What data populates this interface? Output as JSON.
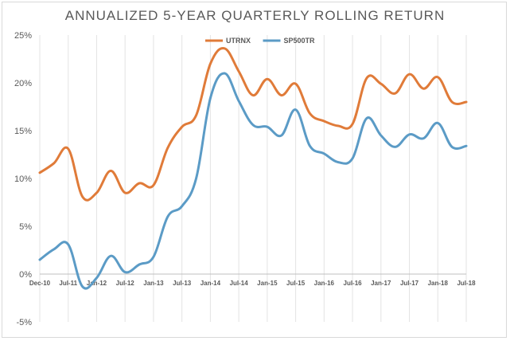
{
  "chart_data": {
    "type": "line",
    "title": "ANNUALIZED 5-YEAR QUARTERLY ROLLING RETURN",
    "xlabel": "",
    "ylabel": "",
    "ylim": [
      -5,
      25
    ],
    "yticks": [
      "25%",
      "20%",
      "15%",
      "10%",
      "5%",
      "0%",
      "-5%"
    ],
    "ytick_values": [
      25,
      20,
      15,
      10,
      5,
      0,
      -5
    ],
    "x": [
      "Dec-10",
      "Mar-11",
      "Jun-11",
      "Sep-11",
      "Dec-11",
      "Mar-12",
      "Jun-12",
      "Sep-12",
      "Dec-12",
      "Mar-13",
      "Jun-13",
      "Sep-13",
      "Dec-13",
      "Mar-14",
      "Jun-14",
      "Sep-14",
      "Dec-14",
      "Mar-15",
      "Jun-15",
      "Sep-15",
      "Dec-15",
      "Mar-16",
      "Jun-16",
      "Sep-16",
      "Dec-16",
      "Mar-17",
      "Jun-17",
      "Sep-17",
      "Dec-17",
      "Mar-18",
      "Jun-18"
    ],
    "xtick_labels": [
      "Dec-10",
      "Jul-11",
      "Jan-12",
      "Jul-12",
      "Jan-13",
      "Jul-13",
      "Jan-14",
      "Jul-14",
      "Jan-15",
      "Jul-15",
      "Jan-16",
      "Jul-16",
      "Jan-17",
      "Jul-17",
      "Jan-18",
      "Jul-18"
    ],
    "legend": "top-center",
    "grid": "vertical",
    "series": [
      {
        "name": "UTRNX",
        "color": "#e07b39",
        "values": [
          10.6,
          11.6,
          13.1,
          8.1,
          8.5,
          10.8,
          8.5,
          9.5,
          9.3,
          13.2,
          15.4,
          16.6,
          22.0,
          23.6,
          21.2,
          18.7,
          20.4,
          18.7,
          19.9,
          16.8,
          16.0,
          15.5,
          15.7,
          20.5,
          19.9,
          18.9,
          20.9,
          19.4,
          20.6,
          18.0,
          18.0
        ]
      },
      {
        "name": "SP500TR",
        "color": "#5b9bc6",
        "values": [
          1.5,
          2.6,
          3.1,
          -1.3,
          -0.4,
          1.9,
          0.2,
          1.0,
          1.8,
          6.0,
          7.1,
          10.0,
          18.4,
          21.0,
          18.1,
          15.6,
          15.4,
          14.5,
          17.2,
          13.4,
          12.6,
          11.7,
          12.1,
          16.3,
          14.5,
          13.3,
          14.6,
          14.2,
          15.8,
          13.3,
          13.4
        ]
      }
    ]
  }
}
